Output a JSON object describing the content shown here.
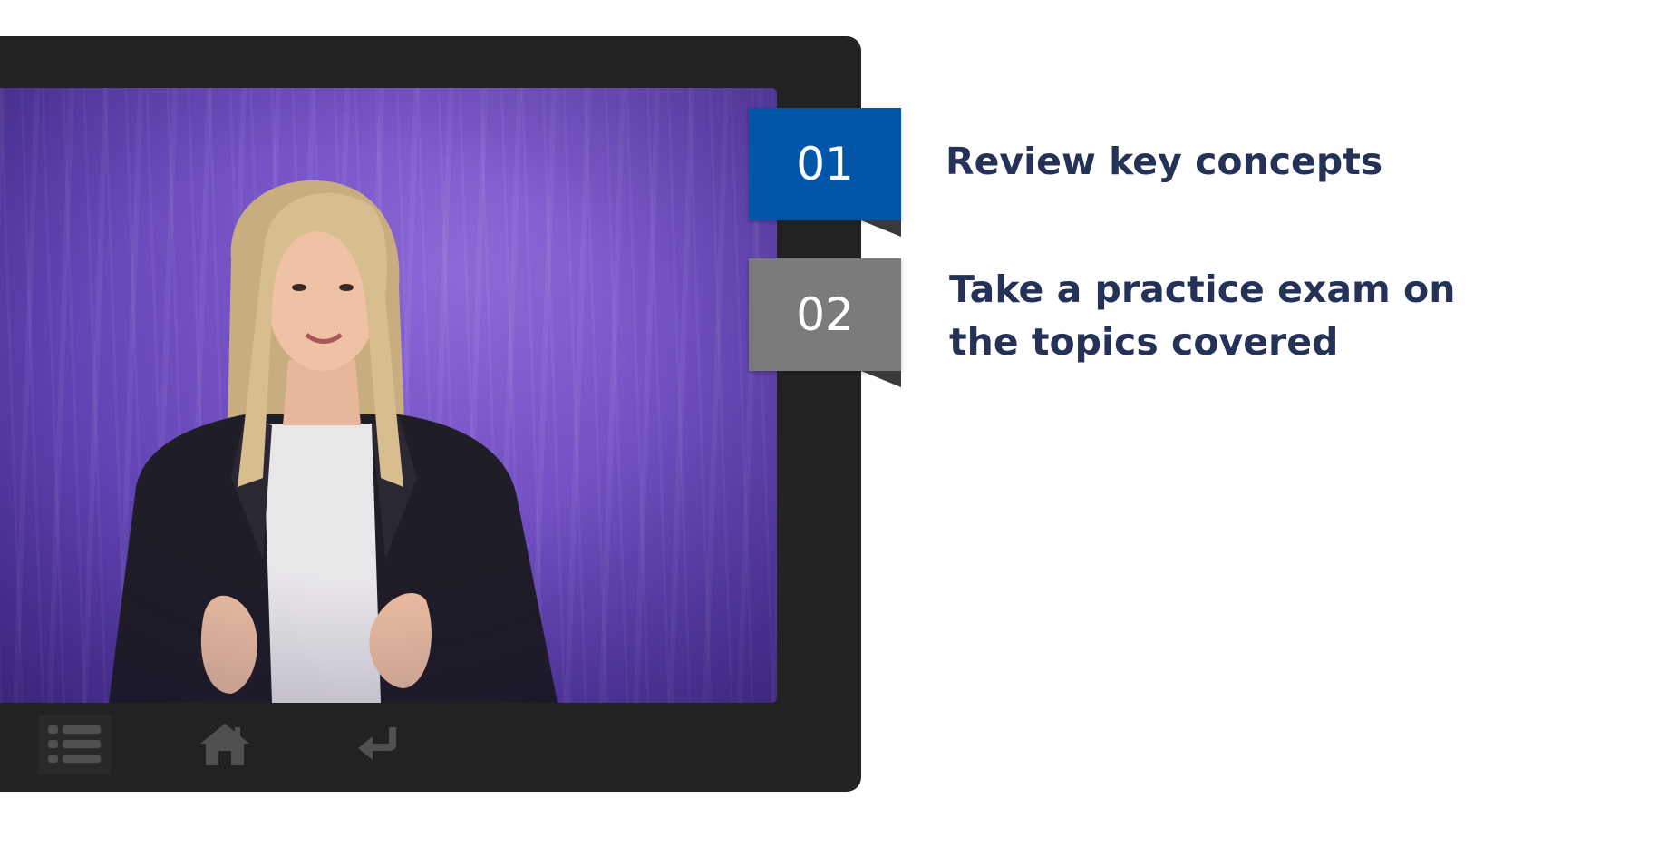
{
  "steps": [
    {
      "number": "01",
      "label": "Review key concepts",
      "color": "#0256aa"
    },
    {
      "number": "02",
      "label": "Take a practice exam on the topics covered",
      "color": "#7b7a7c"
    }
  ],
  "controls": {
    "menu_icon": "list-icon",
    "home_icon": "home-icon",
    "back_icon": "return-arrow-icon"
  },
  "colors": {
    "frame": "#232222",
    "text": "#253257",
    "video_background": "#7653c6"
  }
}
